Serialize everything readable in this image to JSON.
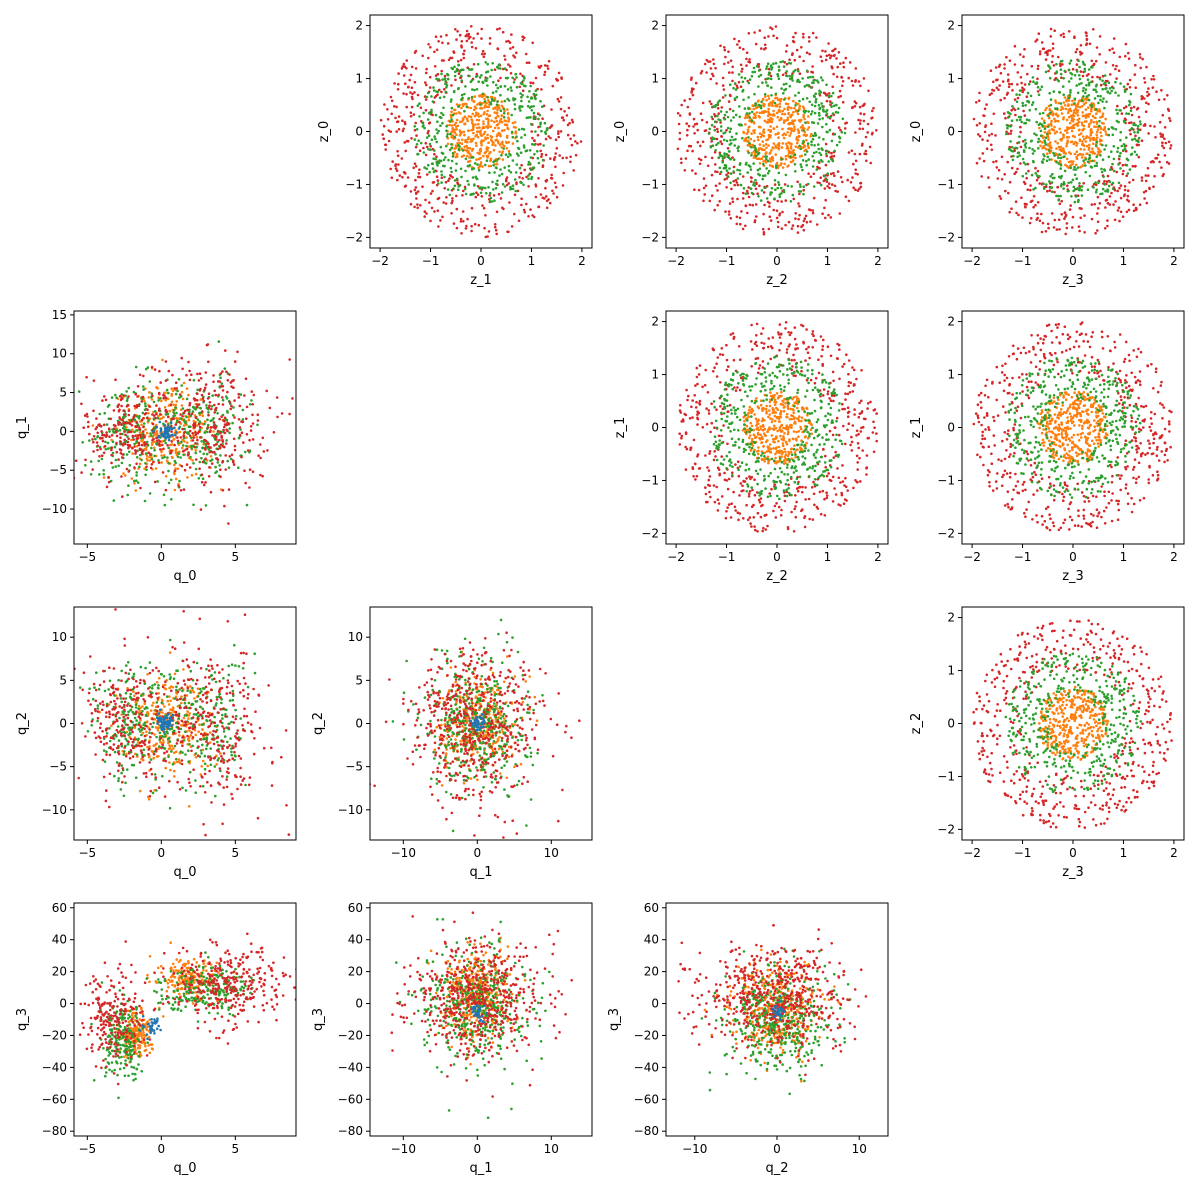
{
  "chart_data": {
    "type": "scatter",
    "layout": "pair-grid 4x4",
    "colors": [
      "#1f77b4",
      "#ff7f0e",
      "#2ca02c",
      "#d62728"
    ],
    "series_shapes": [
      {
        "kind": "disk",
        "radius": 0.25
      },
      {
        "kind": "disk",
        "radius": 0.7
      },
      {
        "kind": "ring",
        "inner": 0.5,
        "outer": 1.35
      },
      {
        "kind": "ring",
        "inner": 1.0,
        "outer": 2.0
      }
    ],
    "panels": [
      {
        "id": "p01",
        "row": 0,
        "col": 1,
        "xlabel": "z_1",
        "ylabel": "z_0",
        "xlim": [
          -2.2,
          2.2
        ],
        "ylim": [
          -2.2,
          2.2
        ],
        "xticks": [
          -2,
          -1,
          0,
          1,
          2
        ],
        "yticks": [
          -2,
          -1,
          0,
          1,
          2
        ],
        "points_per_series": [
          0,
          380,
          420,
          520
        ]
      },
      {
        "id": "p02",
        "row": 0,
        "col": 2,
        "xlabel": "z_2",
        "ylabel": "z_0",
        "xlim": [
          -2.2,
          2.2
        ],
        "ylim": [
          -2.2,
          2.2
        ],
        "xticks": [
          -2,
          -1,
          0,
          1,
          2
        ],
        "yticks": [
          -2,
          -1,
          0,
          1,
          2
        ],
        "points_per_series": [
          0,
          380,
          420,
          520
        ]
      },
      {
        "id": "p03",
        "row": 0,
        "col": 3,
        "xlabel": "z_3",
        "ylabel": "z_0",
        "xlim": [
          -2.2,
          2.2
        ],
        "ylim": [
          -2.2,
          2.2
        ],
        "xticks": [
          -2,
          -1,
          0,
          1,
          2
        ],
        "yticks": [
          -2,
          -1,
          0,
          1,
          2
        ],
        "points_per_series": [
          0,
          380,
          420,
          520
        ]
      },
      {
        "id": "p12",
        "row": 1,
        "col": 2,
        "xlabel": "z_2",
        "ylabel": "z_1",
        "xlim": [
          -2.2,
          2.2
        ],
        "ylim": [
          -2.2,
          2.2
        ],
        "xticks": [
          -2,
          -1,
          0,
          1,
          2
        ],
        "yticks": [
          -2,
          -1,
          0,
          1,
          2
        ],
        "points_per_series": [
          0,
          380,
          420,
          520
        ]
      },
      {
        "id": "p13",
        "row": 1,
        "col": 3,
        "xlabel": "z_3",
        "ylabel": "z_1",
        "xlim": [
          -2.2,
          2.2
        ],
        "ylim": [
          -2.2,
          2.2
        ],
        "xticks": [
          -2,
          -1,
          0,
          1,
          2
        ],
        "yticks": [
          -2,
          -1,
          0,
          1,
          2
        ],
        "points_per_series": [
          0,
          380,
          420,
          520
        ]
      },
      {
        "id": "p23",
        "row": 2,
        "col": 3,
        "xlabel": "z_3",
        "ylabel": "z_2",
        "xlim": [
          -2.2,
          2.2
        ],
        "ylim": [
          -2.2,
          2.2
        ],
        "xticks": [
          -2,
          -1,
          0,
          1,
          2
        ],
        "yticks": [
          -2,
          -1,
          0,
          1,
          2
        ],
        "points_per_series": [
          0,
          380,
          420,
          520
        ]
      },
      {
        "id": "p10",
        "row": 1,
        "col": 0,
        "xlabel": "q_0",
        "ylabel": "q_1",
        "xlim": [
          -5.9,
          9.1
        ],
        "ylim": [
          -14.5,
          15.5
        ],
        "xticks": [
          -5,
          0,
          5
        ],
        "yticks": [
          -10,
          -5,
          0,
          5,
          10,
          15
        ],
        "points_per_series": [
          0,
          0,
          0,
          0
        ],
        "clusters": [
          {
            "series": 0,
            "cx": 0.3,
            "cy": 0,
            "sx": 0.3,
            "sy": 0.5,
            "n": 60
          },
          {
            "series": 1,
            "cx": 0.3,
            "cy": 0,
            "sx": 1.6,
            "sy": 3.0,
            "n": 300
          },
          {
            "series": 2,
            "cx": -2.0,
            "cy": 0,
            "sx": 1.4,
            "sy": 3.2,
            "n": 200
          },
          {
            "series": 2,
            "cx": 2.8,
            "cy": 0,
            "sx": 1.5,
            "sy": 3.5,
            "n": 220
          },
          {
            "series": 3,
            "cx": -2.5,
            "cy": 0,
            "sx": 1.4,
            "sy": 3.0,
            "n": 220
          },
          {
            "series": 3,
            "cx": 3.2,
            "cy": 1,
            "sx": 2.0,
            "sy": 4.5,
            "n": 320
          }
        ]
      },
      {
        "id": "p20",
        "row": 2,
        "col": 0,
        "xlabel": "q_0",
        "ylabel": "q_2",
        "xlim": [
          -5.9,
          9.1
        ],
        "ylim": [
          -13.5,
          13.5
        ],
        "xticks": [
          -5,
          0,
          5
        ],
        "yticks": [
          -10,
          -5,
          0,
          5,
          10
        ],
        "points_per_series": [
          0,
          0,
          0,
          0
        ],
        "clusters": [
          {
            "series": 0,
            "cx": 0.3,
            "cy": 0,
            "sx": 0.3,
            "sy": 0.5,
            "n": 60
          },
          {
            "series": 1,
            "cx": 0.3,
            "cy": 0,
            "sx": 1.6,
            "sy": 2.8,
            "n": 300
          },
          {
            "series": 2,
            "cx": -2.0,
            "cy": 0,
            "sx": 1.4,
            "sy": 3.5,
            "n": 200
          },
          {
            "series": 2,
            "cx": 2.8,
            "cy": 0,
            "sx": 1.5,
            "sy": 3.8,
            "n": 220
          },
          {
            "series": 3,
            "cx": -2.5,
            "cy": 0,
            "sx": 1.4,
            "sy": 3.5,
            "n": 220
          },
          {
            "series": 3,
            "cx": 3.2,
            "cy": 0,
            "sx": 2.0,
            "sy": 4.5,
            "n": 320
          }
        ]
      },
      {
        "id": "p21",
        "row": 2,
        "col": 1,
        "xlabel": "q_1",
        "ylabel": "q_2",
        "xlim": [
          -14.5,
          15.5
        ],
        "ylim": [
          -13.5,
          13.5
        ],
        "xticks": [
          -10,
          0,
          10
        ],
        "yticks": [
          -10,
          -5,
          0,
          5,
          10
        ],
        "points_per_series": [
          0,
          0,
          0,
          0
        ],
        "clusters": [
          {
            "series": 0,
            "cx": 0,
            "cy": 0,
            "sx": 0.5,
            "sy": 0.5,
            "n": 40
          },
          {
            "series": 1,
            "cx": 0,
            "cy": 0,
            "sx": 2.5,
            "sy": 2.8,
            "n": 360
          },
          {
            "series": 2,
            "cx": 0,
            "cy": 0,
            "sx": 3.5,
            "sy": 3.8,
            "n": 420
          },
          {
            "series": 3,
            "cx": 0,
            "cy": 0,
            "sx": 4.5,
            "sy": 4.5,
            "n": 540
          }
        ]
      },
      {
        "id": "p30",
        "row": 3,
        "col": 0,
        "xlabel": "q_0",
        "ylabel": "q_3",
        "xlim": [
          -5.9,
          9.1
        ],
        "ylim": [
          -83,
          63
        ],
        "xticks": [
          -5,
          0,
          5
        ],
        "yticks": [
          -80,
          -60,
          -40,
          -20,
          0,
          20,
          40,
          60
        ],
        "points_per_series": [
          0,
          0,
          0,
          0
        ],
        "clusters": [
          {
            "series": 0,
            "cx": -0.5,
            "cy": -15,
            "sx": 0.3,
            "sy": 3,
            "n": 30
          },
          {
            "series": 1,
            "cx": -1.8,
            "cy": -20,
            "sx": 0.6,
            "sy": 7,
            "n": 180
          },
          {
            "series": 1,
            "cx": 1.8,
            "cy": 15,
            "sx": 1.0,
            "sy": 6,
            "n": 180
          },
          {
            "series": 2,
            "cx": -2.5,
            "cy": -25,
            "sx": 0.7,
            "sy": 12,
            "n": 200
          },
          {
            "series": 2,
            "cx": 3.0,
            "cy": 10,
            "sx": 1.6,
            "sy": 7,
            "n": 220
          },
          {
            "series": 3,
            "cx": -3.2,
            "cy": -10,
            "sx": 1.0,
            "sy": 15,
            "n": 220
          },
          {
            "series": 3,
            "cx": 4.5,
            "cy": 12,
            "sx": 2.0,
            "sy": 12,
            "n": 320
          }
        ]
      },
      {
        "id": "p31",
        "row": 3,
        "col": 1,
        "xlabel": "q_1",
        "ylabel": "q_3",
        "xlim": [
          -14.5,
          15.5
        ],
        "ylim": [
          -83,
          63
        ],
        "xticks": [
          -10,
          0,
          10
        ],
        "yticks": [
          -80,
          -60,
          -40,
          -20,
          0,
          20,
          40,
          60
        ],
        "points_per_series": [
          0,
          0,
          0,
          0
        ],
        "clusters": [
          {
            "series": 0,
            "cx": 0,
            "cy": -5,
            "sx": 0.5,
            "sy": 3,
            "n": 30
          },
          {
            "series": 1,
            "cx": 0,
            "cy": 5,
            "sx": 2.2,
            "sy": 14,
            "n": 360
          },
          {
            "series": 2,
            "cx": 0,
            "cy": 0,
            "sx": 3.5,
            "sy": 18,
            "n": 420
          },
          {
            "series": 3,
            "cx": 0,
            "cy": 3,
            "sx": 4.5,
            "sy": 18,
            "n": 540
          }
        ]
      },
      {
        "id": "p32",
        "row": 3,
        "col": 2,
        "xlabel": "q_2",
        "ylabel": "q_3",
        "xlim": [
          -13.5,
          13.5
        ],
        "ylim": [
          -83,
          63
        ],
        "xticks": [
          -10,
          0,
          10
        ],
        "yticks": [
          -80,
          -60,
          -40,
          -20,
          0,
          20,
          40,
          60
        ],
        "points_per_series": [
          0,
          0,
          0,
          0
        ],
        "clusters": [
          {
            "series": 0,
            "cx": 0,
            "cy": -5,
            "sx": 0.5,
            "sy": 3,
            "n": 30
          },
          {
            "series": 1,
            "cx": 0,
            "cy": -5,
            "sx": 2.5,
            "sy": 14,
            "n": 360
          },
          {
            "series": 2,
            "cx": 0,
            "cy": -10,
            "sx": 3.2,
            "sy": 16,
            "n": 420
          },
          {
            "series": 3,
            "cx": 0,
            "cy": 5,
            "sx": 4.5,
            "sy": 16,
            "n": 540
          }
        ]
      }
    ]
  }
}
